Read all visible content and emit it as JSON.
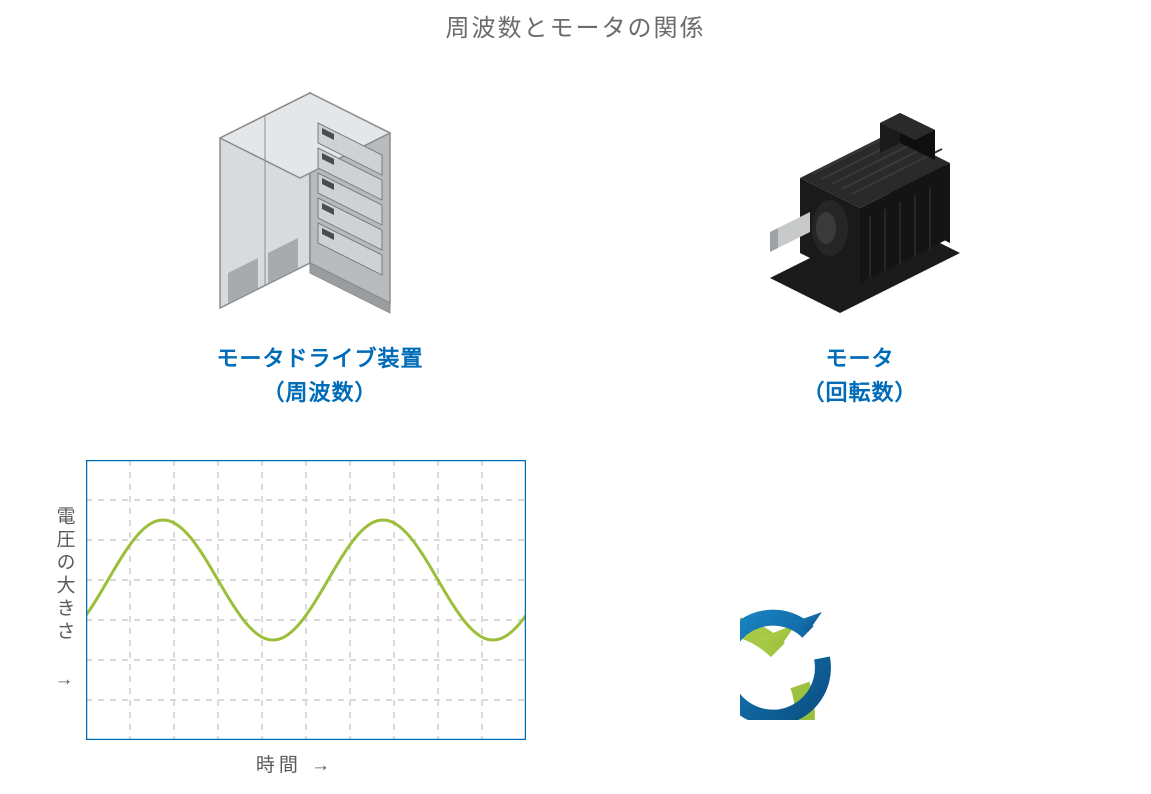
{
  "title": "周波数とモータの関係",
  "left": {
    "label_line1": "モータドライブ装置",
    "label_line2": "（周波数）"
  },
  "right": {
    "label_line1": "モータ",
    "label_line2": "（回転数）"
  },
  "chart": {
    "type": "line",
    "y_label": "電圧の大きさ →",
    "x_label": "時間 →",
    "border_color": "#006cb8",
    "grid_color": "#d9d9d9",
    "grid_dash": "6 6",
    "wave_color": "#9bbf3a",
    "wave_width": 3,
    "background_color": "#ffffff",
    "grid_cols": 10,
    "grid_rows": 7,
    "amplitude": 1.5,
    "midline_row": 3,
    "cycles": 2,
    "phase_start": 0.5
  },
  "rotation": {
    "outer_color_start": "#b7d450",
    "outer_color_end": "#8fb836",
    "inner_color_start": "#0a62a0",
    "inner_color_end": "#1a86c8"
  },
  "colors": {
    "title": "#6b6b6b",
    "label_blue": "#006cb8",
    "axis_text": "#5a5a5a",
    "cabinet_light": "#d9dadb",
    "cabinet_mid": "#b8bbbd",
    "cabinet_dark": "#8a8d8f",
    "cabinet_edge": "#6d6f71",
    "motor_top": "#2a2a2a",
    "motor_front": "#1a1a1a",
    "motor_side": "#0f0f0f",
    "shaft": "#c7c9cb"
  }
}
